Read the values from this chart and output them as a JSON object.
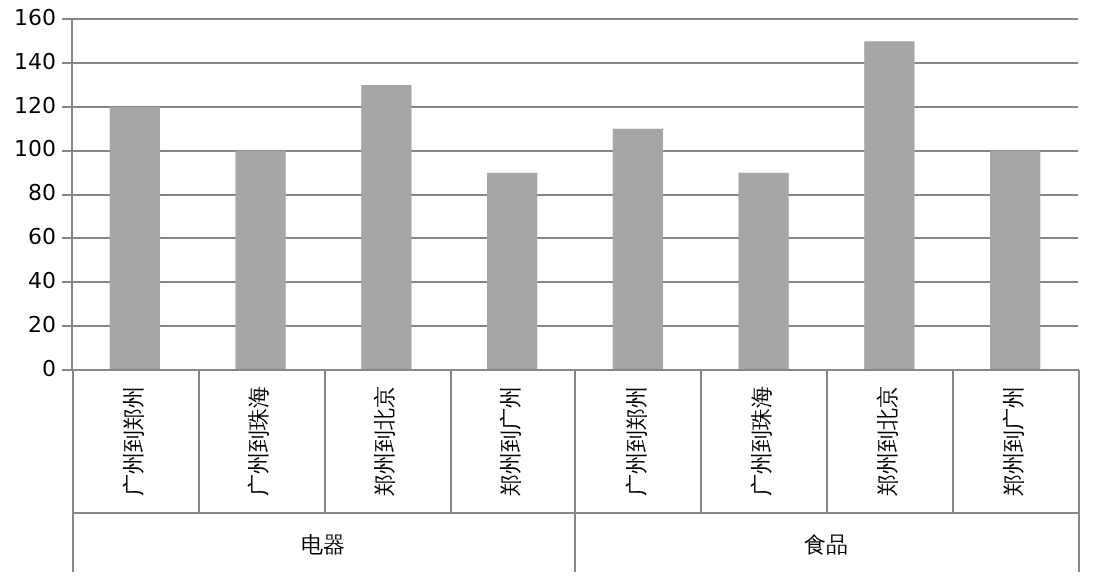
{
  "chart_data": {
    "type": "bar",
    "categories": [
      "广州到郑州",
      "广州到珠海",
      "郑州到北京",
      "郑州到广州",
      "广州到郑州",
      "广州到珠海",
      "郑州到北京",
      "郑州到广州"
    ],
    "values": [
      120,
      100,
      130,
      90,
      110,
      90,
      150,
      100
    ],
    "color": "#a6a6a6",
    "ylim": [
      0,
      160
    ],
    "yticks": [
      0,
      20,
      40,
      60,
      80,
      100,
      120,
      140,
      160
    ],
    "grid": "y",
    "legend": false,
    "annotations": [
      "电器",
      "食品"
    ]
  }
}
